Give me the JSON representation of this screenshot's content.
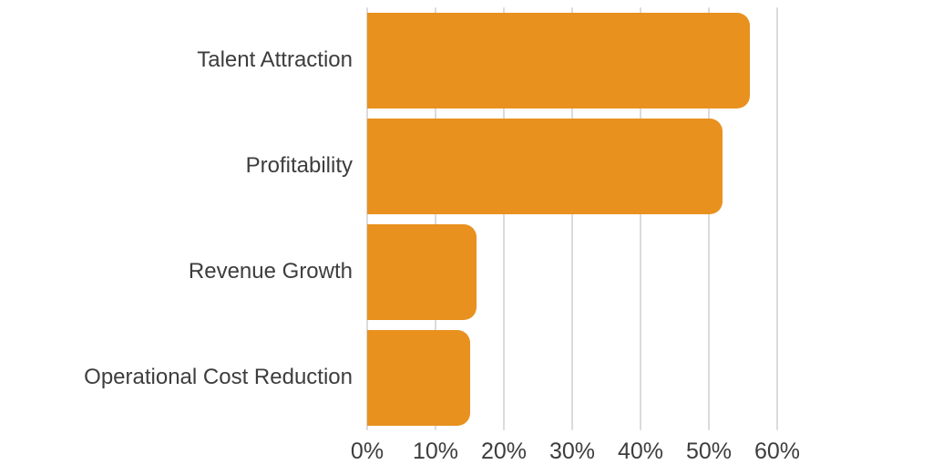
{
  "chart_data": {
    "type": "bar",
    "orientation": "horizontal",
    "title": "",
    "categories": [
      "Talent Attraction",
      "Profitability",
      "Revenue Growth",
      "Operational Cost Reduction"
    ],
    "values": [
      56,
      52,
      16,
      15
    ],
    "value_unit": "%",
    "series_name": "",
    "xlabel": "",
    "ylabel": "",
    "xlim": [
      0,
      62
    ],
    "x_ticks": [
      0,
      10,
      20,
      30,
      40,
      50,
      60
    ],
    "x_tick_labels": [
      "0%",
      "10%",
      "20%",
      "30%",
      "40%",
      "50%",
      "60%"
    ],
    "grid": "vertical-gridlines-on",
    "legend": "none",
    "colors": {
      "bar": "#E8911F",
      "gridline": "#DBDBDB",
      "category_text": "#3D3D3D",
      "axis_text": "#3D3D3D",
      "background": "#FFFFFF"
    }
  }
}
